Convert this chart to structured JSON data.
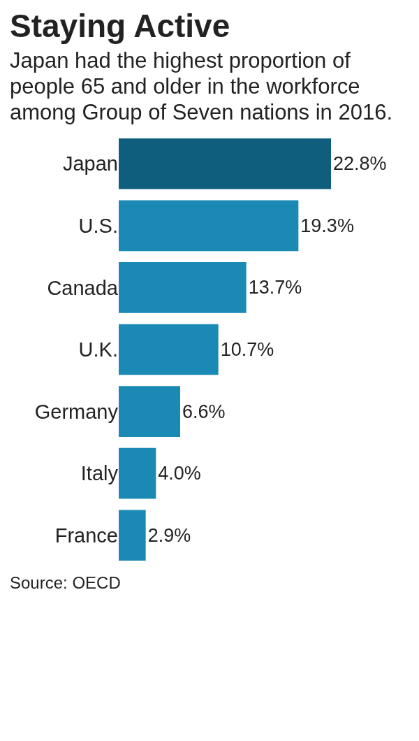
{
  "chart_data": {
    "type": "bar",
    "orientation": "horizontal",
    "title": "Staying Active",
    "subtitle": "Japan had the highest proportion of people 65 and older in the workforce among Group of Seven nations in 2016.",
    "categories": [
      "Japan",
      "U.S.",
      "Canada",
      "U.K.",
      "Germany",
      "Italy",
      "France"
    ],
    "values": [
      22.8,
      19.3,
      13.7,
      10.7,
      6.6,
      4.0,
      2.9
    ],
    "value_labels": [
      "22.8%",
      "19.3%",
      "13.7%",
      "10.7%",
      "6.6%",
      "4.0%",
      "2.9%"
    ],
    "colors": [
      "#0f5e7e",
      "#1a8ab4",
      "#1a8ab4",
      "#1a8ab4",
      "#1a8ab4",
      "#1a8ab4",
      "#1a8ab4"
    ],
    "annotations": [
      "Source: OECD"
    ]
  }
}
